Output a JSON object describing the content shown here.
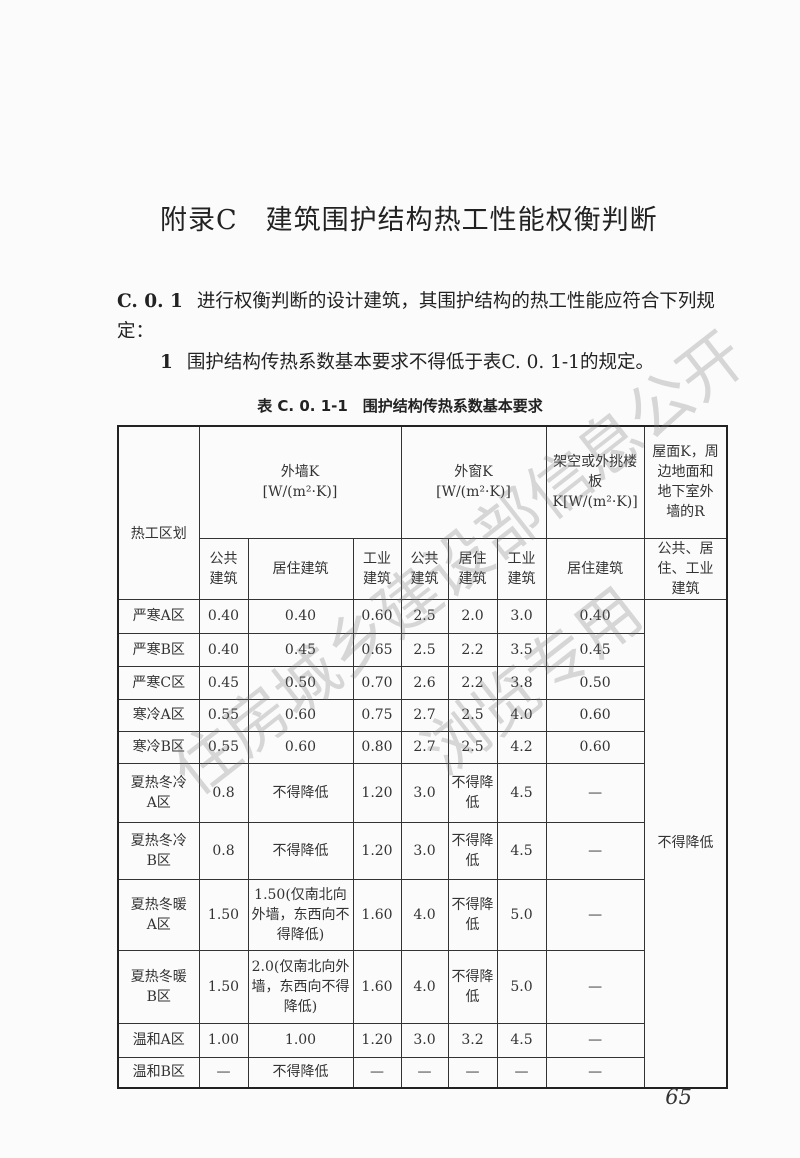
{
  "title": "附录C　建筑围护结构热工性能权衡判断",
  "clause": {
    "number": "C. 0. 1",
    "text": "进行权衡判断的设计建筑，其围护结构的热工性能应符合下列规定："
  },
  "item1": {
    "number": "1",
    "text": "围护结构传热系数基本要求不得低于表C. 0. 1-1的规定。"
  },
  "table": {
    "caption": "表 C. 0. 1-1　围护结构传热系数基本要求",
    "h_zone": "热工区划",
    "h_wall": "外墙K",
    "h_wall_unit": "[W/(m²·K)]",
    "h_window": "外窗K",
    "h_window_unit": "[W/(m²·K)]",
    "h_floor": "架空或外挑楼板K[W/(m²·K)]",
    "h_roof": "屋面K，周边地面和地下室外墙的R",
    "sub": [
      "公共建筑",
      "居住建筑",
      "工业建筑",
      "公共建筑",
      "居住建筑",
      "工业建筑",
      "居住建筑",
      "公共、居住、工业建筑"
    ],
    "roof_value": "不得降低",
    "rows": [
      [
        "严寒A区",
        "0.40",
        "0.40",
        "0.60",
        "2.5",
        "2.0",
        "3.0",
        "0.40"
      ],
      [
        "严寒B区",
        "0.40",
        "0.45",
        "0.65",
        "2.5",
        "2.2",
        "3.5",
        "0.45"
      ],
      [
        "严寒C区",
        "0.45",
        "0.50",
        "0.70",
        "2.6",
        "2.2",
        "3.8",
        "0.50"
      ],
      [
        "寒冷A区",
        "0.55",
        "0.60",
        "0.75",
        "2.7",
        "2.5",
        "4.0",
        "0.60"
      ],
      [
        "寒冷B区",
        "0.55",
        "0.60",
        "0.80",
        "2.7",
        "2.5",
        "4.2",
        "0.60"
      ],
      [
        "夏热冬冷A区",
        "0.8",
        "不得降低",
        "1.20",
        "3.0",
        "不得降低",
        "4.5",
        "—"
      ],
      [
        "夏热冬冷B区",
        "0.8",
        "不得降低",
        "1.20",
        "3.0",
        "不得降低",
        "4.5",
        "—"
      ],
      [
        "夏热冬暖A区",
        "1.50",
        "1.50(仅南北向外墙，东西向不得降低)",
        "1.60",
        "4.0",
        "不得降低",
        "5.0",
        "—"
      ],
      [
        "夏热冬暖B区",
        "1.50",
        "2.0(仅南北向外墙，东西向不得降低)",
        "1.60",
        "4.0",
        "不得降低",
        "5.0",
        "—"
      ],
      [
        "温和A区",
        "1.00",
        "1.00",
        "1.20",
        "3.0",
        "3.2",
        "4.5",
        "—"
      ],
      [
        "温和B区",
        "—",
        "不得降低",
        "—",
        "—",
        "—",
        "—",
        "—"
      ]
    ]
  },
  "page_number": "65",
  "watermark": [
    "住房城乡建设部信息公开",
    "浏览专用"
  ]
}
